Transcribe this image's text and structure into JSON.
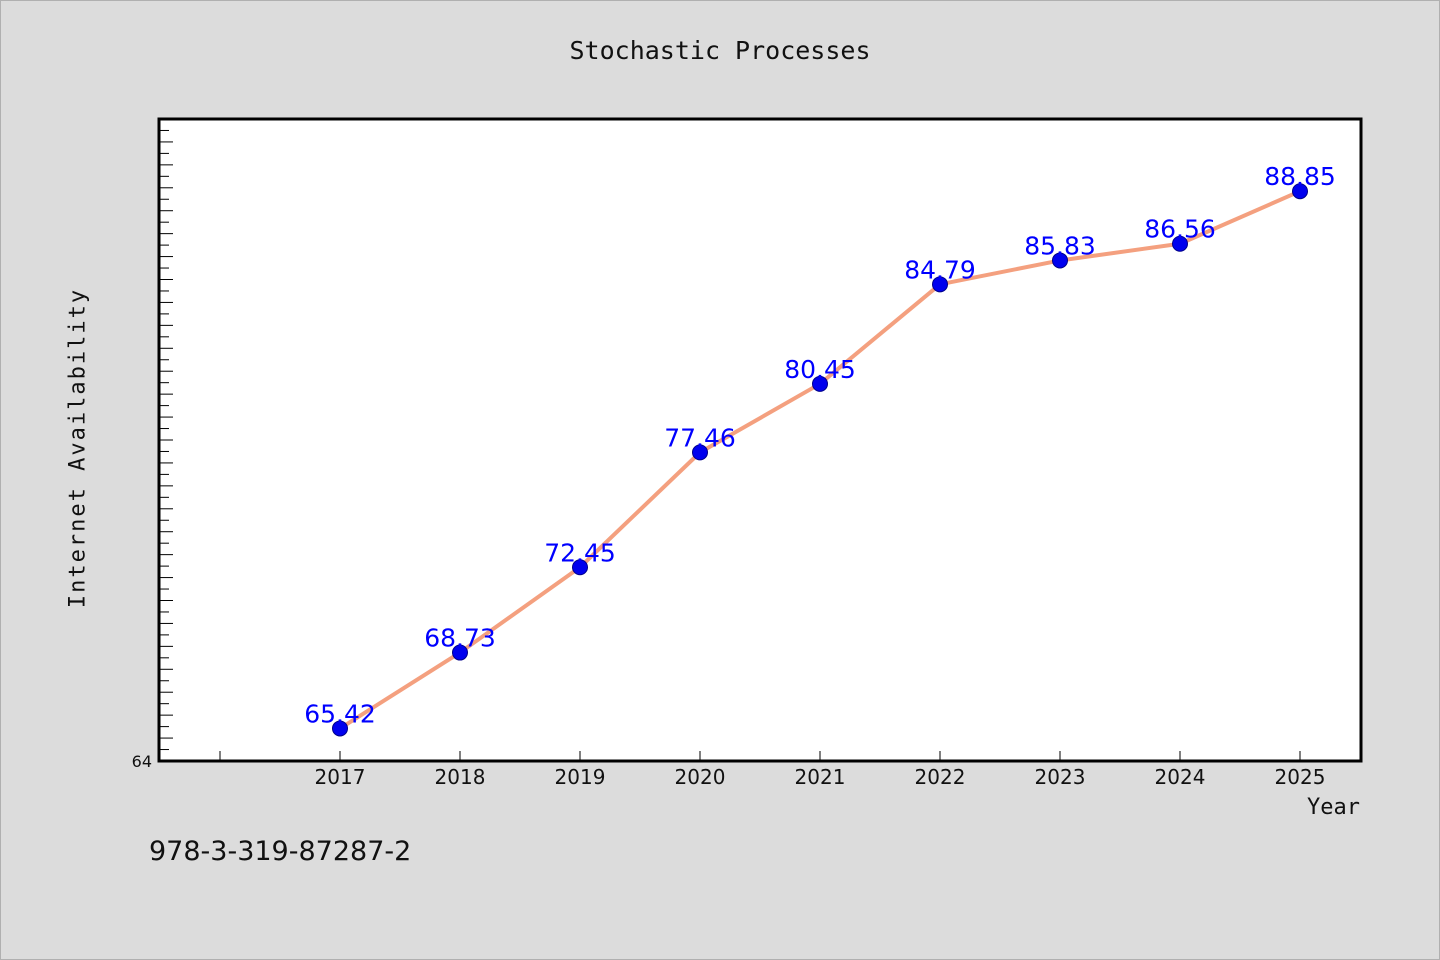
{
  "chart_data": {
    "type": "line",
    "title": "Stochastic Processes",
    "xlabel": "Year",
    "ylabel": "Internet Availability",
    "categories": [
      "2017",
      "2018",
      "2019",
      "2020",
      "2021",
      "2022",
      "2023",
      "2024",
      "2025"
    ],
    "series": [
      {
        "values": [
          65.42,
          68.73,
          72.45,
          77.46,
          80.45,
          84.79,
          85.83,
          86.56,
          88.85
        ],
        "data_labels": [
          "65.42",
          "68.73",
          "72.45",
          "77.46",
          "80.45",
          "84.79",
          "85.83",
          "86.56",
          "88.85"
        ],
        "line_color": "#f4a07f",
        "marker_color": "#0000ee"
      }
    ],
    "ylim": [
      64,
      92
    ],
    "y_tick_labels": [
      "64"
    ],
    "grid": false,
    "label_color": "#0000ff"
  },
  "footer_text": "978-3-319-87287-2"
}
